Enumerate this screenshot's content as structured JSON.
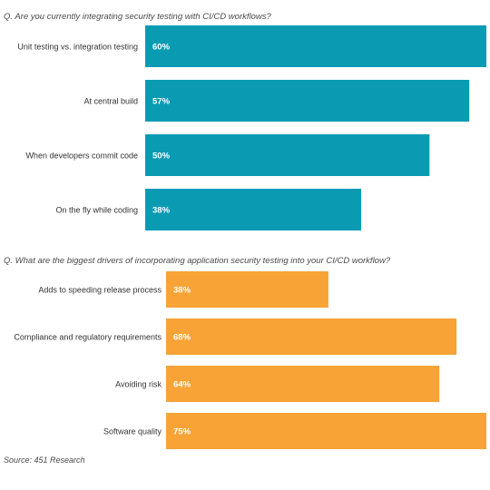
{
  "chart_data": [
    {
      "type": "bar",
      "orientation": "horizontal",
      "title": "Q. Are you currently integrating security testing with CI/CD workflows?",
      "categories": [
        "Unit testing vs. integration testing",
        "At central build",
        "When developers commit code",
        "On the fly while coding"
      ],
      "values": [
        60,
        57,
        50,
        38
      ],
      "value_labels": [
        "60%",
        "57%",
        "50%",
        "38%"
      ],
      "color": "#0a9bb3",
      "xlim": [
        0,
        60
      ],
      "grid": false,
      "legend": "none"
    },
    {
      "type": "bar",
      "orientation": "horizontal",
      "title": "Q. What are the biggest drivers of incorporating application security testing into your CI/CD workflow?",
      "categories": [
        "Adds to speeding release process",
        "Compliance and regulatory requirements",
        "Avoiding risk",
        "Software quality"
      ],
      "values": [
        38,
        68,
        64,
        75
      ],
      "value_labels": [
        "38%",
        "68%",
        "64%",
        "75%"
      ],
      "color": "#f7a336",
      "xlim": [
        0,
        75
      ],
      "grid": false,
      "legend": "none"
    }
  ],
  "source": "Source: 451 Research"
}
